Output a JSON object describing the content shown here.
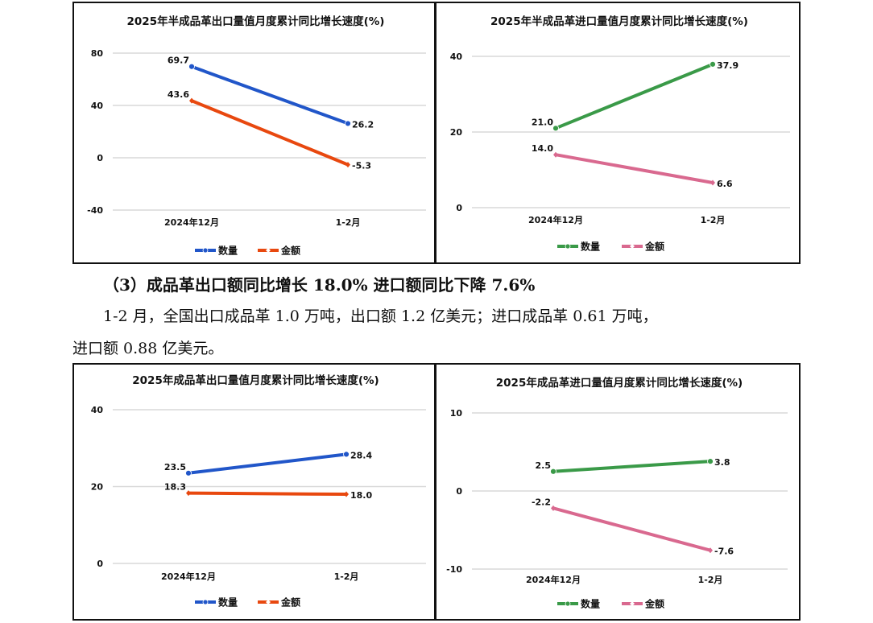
{
  "chart_data": [
    {
      "type": "line",
      "title": "2025年半成品革出口量值月度累计同比增长速度(%)",
      "categories": [
        "2024年12月",
        "1-2月"
      ],
      "ylim": [
        -40,
        80
      ],
      "yticks": [
        80,
        40,
        0,
        -40
      ],
      "grid": true,
      "legend": "bottom",
      "series": [
        {
          "name": "数量",
          "values": [
            69.7,
            26.2
          ],
          "labels": [
            "69.7",
            "26.2"
          ],
          "color": "#2156c9"
        },
        {
          "name": "金额",
          "values": [
            43.6,
            -5.3
          ],
          "labels": [
            "43.6",
            "-5.3"
          ],
          "color": "#e8480f"
        }
      ]
    },
    {
      "type": "line",
      "title": "2025年半成品革进口量值月度累计同比增长速度(%)",
      "categories": [
        "2024年12月",
        "1-2月"
      ],
      "ylim": [
        0,
        40
      ],
      "yticks": [
        40,
        20,
        0
      ],
      "grid": true,
      "legend": "bottom",
      "series": [
        {
          "name": "数量",
          "values": [
            21.0,
            37.9
          ],
          "labels": [
            "21.0",
            "37.9"
          ],
          "color": "#3a9a48"
        },
        {
          "name": "金额",
          "values": [
            14.0,
            6.6
          ],
          "labels": [
            "14.0",
            "6.6"
          ],
          "color": "#d9698f"
        }
      ]
    },
    {
      "type": "line",
      "title": "2025年成品革出口量值月度累计同比增长速度(%)",
      "categories": [
        "2024年12月",
        "1-2月"
      ],
      "ylim": [
        0,
        40
      ],
      "yticks": [
        40,
        20,
        0
      ],
      "grid": true,
      "legend": "bottom",
      "series": [
        {
          "name": "数量",
          "values": [
            23.5,
            28.4
          ],
          "labels": [
            "23.5",
            "28.4"
          ],
          "color": "#2156c9"
        },
        {
          "name": "金额",
          "values": [
            18.3,
            18.0
          ],
          "labels": [
            "18.3",
            "18.0"
          ],
          "color": "#e8480f"
        }
      ]
    },
    {
      "type": "line",
      "title": "2025年成品革进口量值月度累计同比增长速度(%)",
      "categories": [
        "2024年12月",
        "1-2月"
      ],
      "ylim": [
        -10,
        10
      ],
      "yticks": [
        10,
        0,
        -10
      ],
      "grid": true,
      "legend": "bottom",
      "series": [
        {
          "name": "数量",
          "values": [
            2.5,
            3.8
          ],
          "labels": [
            "2.5",
            "3.8"
          ],
          "color": "#3a9a48"
        },
        {
          "name": "金额",
          "values": [
            -2.2,
            -7.6
          ],
          "labels": [
            "-2.2",
            "-7.6"
          ],
          "color": "#d9698f"
        }
      ]
    }
  ],
  "text": {
    "heading": "（3）成品革出口额同比增长 18.0%   进口额同比下降 7.6%",
    "para_line1": "1-2 月，全国出口成品革 1.0 万吨，出口额 1.2 亿美元；进口成品革 0.61 万吨，",
    "para_line2": "进口额 0.88 亿美元。"
  }
}
